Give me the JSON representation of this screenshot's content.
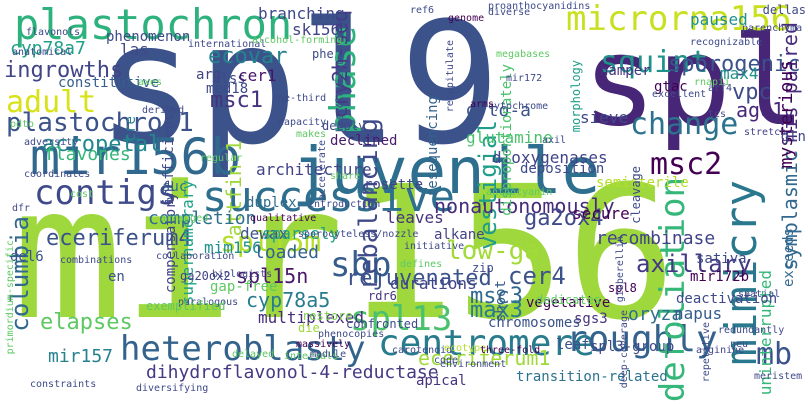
{
  "words": [
    {
      "text": "mir156",
      "color": "#9fd83c"
    },
    {
      "text": "spl9",
      "color": "#3b528b"
    },
    {
      "text": "spl",
      "color": "#482677"
    },
    {
      "text": "juvenile",
      "color": "#2e6e8e"
    },
    {
      "text": "mimicry",
      "color": "#2a788e"
    },
    {
      "text": "mir156b",
      "color": "#31688e"
    },
    {
      "text": "plastochron",
      "color": "#2db27d"
    },
    {
      "text": "microrna156",
      "color": "#c8e020"
    },
    {
      "text": "successive",
      "color": "#2e6e8e"
    },
    {
      "text": "heteroblasty",
      "color": "#33638d"
    },
    {
      "text": "centromere",
      "color": "#287c8e"
    },
    {
      "text": "roughly",
      "color": "#33638d"
    },
    {
      "text": "defoliation",
      "color": "#35b779"
    },
    {
      "text": "phase",
      "color": "#2db27d"
    },
    {
      "text": "squint",
      "color": "#21918c"
    },
    {
      "text": "change",
      "color": "#2c728e"
    },
    {
      "text": "spl13",
      "color": "#4ac16d"
    },
    {
      "text": "contigs",
      "color": "#3e4a89"
    },
    {
      "text": "adult",
      "color": "#d8e219"
    },
    {
      "text": "plastochron1",
      "color": "#3b528b"
    },
    {
      "text": "spl15m",
      "color": "#b5de2b"
    },
    {
      "text": "sbp",
      "color": "#365c8d"
    },
    {
      "text": "msc2",
      "color": "#440154"
    },
    {
      "text": "mb",
      "color": "#3b528b"
    },
    {
      "text": "ecovar",
      "color": "#26828e"
    },
    {
      "text": "ingrowths",
      "color": "#414487"
    },
    {
      "text": "cyp78a7",
      "color": "#1fa088"
    },
    {
      "text": "columbia",
      "color": "#31688e"
    },
    {
      "text": "rebalancing",
      "color": "#3e4a89"
    },
    {
      "text": "vestigial",
      "color": "#1f9e89"
    },
    {
      "text": "acropetal",
      "color": "#23888e"
    },
    {
      "text": "flavones",
      "color": "#35b779"
    },
    {
      "text": "msc1",
      "color": "#46337e"
    },
    {
      "text": "cry2h-seq",
      "color": "#443983"
    },
    {
      "text": "attfin-1",
      "color": "#9fd83c"
    },
    {
      "text": "nonautonomously",
      "color": "#472c7a"
    },
    {
      "text": "eceriferum4",
      "color": "#3b528b"
    },
    {
      "text": "low-ga",
      "color": "#a2da37"
    },
    {
      "text": "msc3",
      "color": "#31688e"
    },
    {
      "text": "max3",
      "color": "#287c8e"
    },
    {
      "text": "cer4",
      "color": "#3b528b"
    },
    {
      "text": "ga2ox4",
      "color": "#3e4a89"
    },
    {
      "text": "axillary",
      "color": "#443983"
    },
    {
      "text": "recombinase",
      "color": "#414487"
    },
    {
      "text": "rejuvenated",
      "color": "#3b528b"
    },
    {
      "text": "elapses",
      "color": "#5ec962"
    },
    {
      "text": "mir157",
      "color": "#26828e"
    },
    {
      "text": "dihydroflavonol-4-reductase",
      "color": "#443983"
    },
    {
      "text": "eceriferum1",
      "color": "#a0da39"
    },
    {
      "text": "symplasmic",
      "color": "#31688e"
    },
    {
      "text": "mis-paired",
      "color": "#472d7b"
    },
    {
      "text": "sporogenic",
      "color": "#3b528b"
    },
    {
      "text": "vpc",
      "color": "#3e4a89"
    },
    {
      "text": "ago1",
      "color": "#482878"
    },
    {
      "text": "mysterious",
      "color": "#440154"
    },
    {
      "text": "uninterrupted",
      "color": "#35b779"
    },
    {
      "text": "exceeds",
      "color": "#31688e"
    },
    {
      "text": "cyp78a5",
      "color": "#287c8e"
    },
    {
      "text": "spl15n",
      "color": "#48186a"
    },
    {
      "text": "mim156",
      "color": "#21918c"
    },
    {
      "text": "loaded",
      "color": "#33638d"
    },
    {
      "text": "dewax",
      "color": "#3b528b"
    },
    {
      "text": "duplex",
      "color": "#2e6e8e"
    },
    {
      "text": "gap-free",
      "color": "#5ec962"
    },
    {
      "text": "multiplexed",
      "color": "#472d7b"
    },
    {
      "text": "supernumerary",
      "color": "#20a386"
    },
    {
      "text": "compensatory",
      "color": "#414487"
    },
    {
      "text": "completion",
      "color": "#2e6e8e"
    },
    {
      "text": "sparsely",
      "color": "#20a386"
    },
    {
      "text": "sk156",
      "color": "#414487"
    },
    {
      "text": "branching",
      "color": "#3e4a89"
    },
    {
      "text": "phenomenon",
      "color": "#3e4a89"
    },
    {
      "text": "las",
      "color": "#3e4a89"
    },
    {
      "text": "nlss",
      "color": "#3e4a89"
    },
    {
      "text": "cer1",
      "color": "#481467"
    },
    {
      "text": "constitutive",
      "color": "#355f8d"
    },
    {
      "text": "med18",
      "color": "#3e4a89"
    },
    {
      "text": "declined",
      "color": "#481b6d"
    },
    {
      "text": "architecture",
      "color": "#414487"
    },
    {
      "text": "rosette",
      "color": "#414487"
    },
    {
      "text": "leaves",
      "color": "#46337e"
    },
    {
      "text": "paused",
      "color": "#21918c"
    },
    {
      "text": "gtac",
      "color": "#440154"
    },
    {
      "text": "max4",
      "color": "#21918c"
    },
    {
      "text": "g-to-a",
      "color": "#3b528b"
    },
    {
      "text": "glutamine",
      "color": "#4ac16d"
    },
    {
      "text": "sieve",
      "color": "#3e4a89"
    },
    {
      "text": "dioxygenases",
      "color": "#414487"
    },
    {
      "text": "deposition",
      "color": "#3e4a89"
    },
    {
      "text": "semisterile",
      "color": "#b5de2b"
    },
    {
      "text": "secure",
      "color": "#440154"
    },
    {
      "text": "alkane",
      "color": "#414487"
    },
    {
      "text": "sgs3",
      "color": "#46337e"
    },
    {
      "text": "oryza",
      "color": "#2e6e8e"
    },
    {
      "text": "napus",
      "color": "#365c8d"
    },
    {
      "text": "deactivation",
      "color": "#3e4a89"
    },
    {
      "text": "mir172b",
      "color": "#440154"
    },
    {
      "text": "spl3-group",
      "color": "#3e4a89"
    },
    {
      "text": "durations",
      "color": "#414487"
    },
    {
      "text": "chromosomes",
      "color": "#3b528b"
    },
    {
      "text": "vegetative",
      "color": "#440154"
    },
    {
      "text": "shoot",
      "color": "#355f8d"
    },
    {
      "text": "transition-related",
      "color": "#2c728e"
    },
    {
      "text": "apical",
      "color": "#46337e"
    },
    {
      "text": "leaf",
      "color": "#3b528b"
    },
    {
      "text": "del6",
      "color": "#3b528b"
    },
    {
      "text": "en",
      "color": "#3b528b"
    },
    {
      "text": "suc",
      "color": "#2e6e8e"
    },
    {
      "text": "cre",
      "color": "#26828e"
    },
    {
      "text": "inefficiency",
      "color": "#3e4a89"
    },
    {
      "text": "resequencing",
      "color": "#33638d"
    },
    {
      "text": "disproportionately",
      "color": "#4ac16d"
    },
    {
      "text": "morphology",
      "color": "#1f9e89"
    },
    {
      "text": "hamper",
      "color": "#46337e"
    },
    {
      "text": "arg",
      "color": "#414487"
    },
    {
      "text": "phe",
      "color": "#3e4a89"
    },
    {
      "text": "cleavage",
      "color": "#3e4a89"
    },
    {
      "text": "sativa",
      "color": "#3e4a89"
    },
    {
      "text": "secure2",
      "color": "#440154"
    },
    {
      "text": "zip",
      "color": "#3e4a89"
    },
    {
      "text": "dedicates",
      "color": "#5ec962"
    },
    {
      "text": "restore",
      "color": "#7ad151"
    },
    {
      "text": "rdr6",
      "color": "#46337e"
    },
    {
      "text": "confronted",
      "color": "#3e4a89"
    },
    {
      "text": "spl8",
      "color": "#440154"
    },
    {
      "text": "ga20ox2",
      "color": "#414487"
    },
    {
      "text": "biologists",
      "color": "#414487"
    },
    {
      "text": "paralogous",
      "color": "#3e4a89"
    },
    {
      "text": "exemplified",
      "color": "#5ec962"
    },
    {
      "text": "massively",
      "color": "#440154"
    },
    {
      "text": "die",
      "color": "#9fd83c"
    },
    {
      "text": "phenocopies",
      "color": "#3e4a89"
    },
    {
      "text": "carotenoid",
      "color": "#3e4a89"
    },
    {
      "text": "ecotype",
      "color": "#b5de2b"
    },
    {
      "text": "three-fold",
      "color": "#440154"
    },
    {
      "text": "arginine",
      "color": "#414487"
    },
    {
      "text": "redundantly",
      "color": "#3e4a89"
    },
    {
      "text": "meristem",
      "color": "#3e4a89"
    },
    {
      "text": "constraints",
      "color": "#3e4a89"
    },
    {
      "text": "diversifying",
      "color": "#3e4a89"
    },
    {
      "text": "primordium-specific",
      "color": "#5ec962"
    },
    {
      "text": "spatial",
      "color": "#3e4a89"
    },
    {
      "text": "stretch",
      "color": "#414487"
    },
    {
      "text": "gln",
      "color": "#414487"
    },
    {
      "text": "dellas",
      "color": "#3e4a89"
    },
    {
      "text": "ref6",
      "color": "#3e4a89"
    },
    {
      "text": "proanthocyanidins",
      "color": "#3e4a89"
    },
    {
      "text": "genome",
      "color": "#440154"
    },
    {
      "text": "diverse",
      "color": "#3e4a89"
    },
    {
      "text": "international",
      "color": "#3e4a89"
    },
    {
      "text": "alcohol-forming",
      "color": "#5ec962"
    },
    {
      "text": "deeply",
      "color": "#3e4a89"
    },
    {
      "text": "one-third",
      "color": "#3e4a89"
    },
    {
      "text": "capacity",
      "color": "#3e4a89"
    },
    {
      "text": "anthocyanin",
      "color": "#5ec962"
    },
    {
      "text": "cytochrome",
      "color": "#3e4a89"
    },
    {
      "text": "arms",
      "color": "#440154"
    },
    {
      "text": "excellent",
      "color": "#3e4a89"
    },
    {
      "text": "recognizable",
      "color": "#3e4a89"
    },
    {
      "text": "share",
      "color": "#5ec962"
    },
    {
      "text": "introduction",
      "color": "#3e4a89"
    },
    {
      "text": "qualitative",
      "color": "#440154"
    },
    {
      "text": "regular",
      "color": "#5ec962"
    },
    {
      "text": "arranged",
      "color": "#5ec962"
    },
    {
      "text": "collaboration",
      "color": "#3e4a89"
    },
    {
      "text": "sporocyteless/nozzle",
      "color": "#3e4a89"
    },
    {
      "text": "initiative",
      "color": "#3e4a89"
    },
    {
      "text": "defines",
      "color": "#5ec962"
    },
    {
      "text": "environment",
      "color": "#3e4a89"
    },
    {
      "text": "intervals",
      "color": "#5ec962"
    },
    {
      "text": "module",
      "color": "#3e4a89"
    },
    {
      "text": "derived",
      "color": "#3e4a89"
    },
    {
      "text": "axes",
      "color": "#5ec962"
    },
    {
      "text": "anatomical",
      "color": "#3e4a89"
    },
    {
      "text": "flavonols",
      "color": "#3e4a89"
    },
    {
      "text": "adversity",
      "color": "#3e4a89"
    },
    {
      "text": "dfr",
      "color": "#3e4a89"
    },
    {
      "text": "combinations",
      "color": "#3e4a89"
    },
    {
      "text": "coordinates",
      "color": "#3e4a89"
    },
    {
      "text": "cost",
      "color": "#5ec962"
    },
    {
      "text": "pdto",
      "color": "#5ec962"
    },
    {
      "text": "mir172",
      "color": "#3e4a89"
    },
    {
      "text": "megabases",
      "color": "#5ec962"
    },
    {
      "text": "recapitulate",
      "color": "#3e4a89"
    },
    {
      "text": "gibberellin",
      "color": "#3e4a89"
    },
    {
      "text": "deep-coverage",
      "color": "#3e4a89"
    },
    {
      "text": "parenchyma",
      "color": "#3e4a89"
    },
    {
      "text": "rnapii",
      "color": "#5ec962"
    },
    {
      "text": "arf4",
      "color": "#3e4a89"
    },
    {
      "text": "tcs",
      "color": "#3e4a89"
    },
    {
      "text": "axil",
      "color": "#3e4a89"
    },
    {
      "text": "histological",
      "color": "#3e4a89"
    },
    {
      "text": "makes",
      "color": "#5ec962"
    },
    {
      "text": "accelerate",
      "color": "#3e4a89"
    },
    {
      "text": "code",
      "color": "#3e4a89"
    },
    {
      "text": "repetitive",
      "color": "#3e4a89"
    },
    {
      "text": "delayed",
      "color": "#5ec962"
    },
    {
      "text": "neu",
      "color": "#3e4a89"
    }
  ]
}
